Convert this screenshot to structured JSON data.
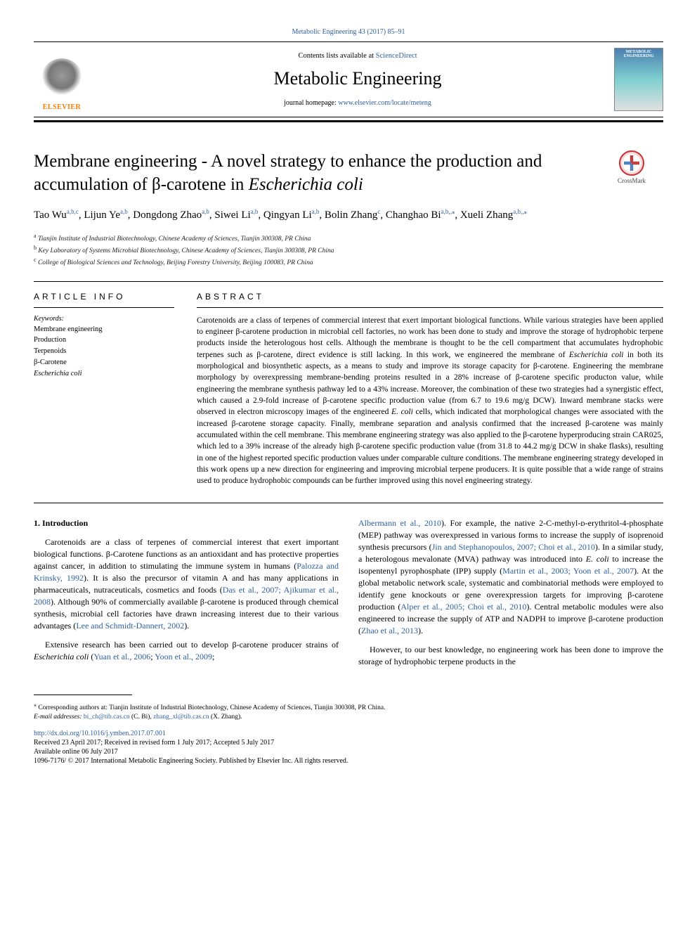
{
  "top_ref": "Metabolic Engineering 43 (2017) 85–91",
  "header": {
    "contents_prefix": "Contents lists available at ",
    "contents_link": "ScienceDirect",
    "journal_name": "Metabolic Engineering",
    "homepage_prefix": "journal homepage: ",
    "homepage_url": "www.elsevier.com/locate/meteng",
    "elsevier": "ELSEVIER",
    "cover_text": "METABOLIC ENGINEERING"
  },
  "crossmark_label": "CrossMark",
  "title_pre": "Membrane engineering - A novel strategy to enhance the production and accumulation of β-carotene in ",
  "title_em": "Escherichia coli",
  "authors_html": "Tao Wu|a,b,c|, Lijun Ye|a,b|, Dongdong Zhao|a,b|, Siwei Li|a,b|, Qingyan Li|a,b|, Bolin Zhang|c|, Changhao Bi|a,b,*|, Xueli Zhang|a,b,*|",
  "affiliations": [
    {
      "key": "a",
      "text": "Tianjin Institute of Industrial Biotechnology, Chinese Academy of Sciences, Tianjin 300308, PR China"
    },
    {
      "key": "b",
      "text": "Key Laboratory of Systems Microbial Biotechnology, Chinese Academy of Sciences, Tianjin 300308, PR China"
    },
    {
      "key": "c",
      "text": "College of Biological Sciences and Technology, Beijing Forestry University, Beijing 100083, PR China"
    }
  ],
  "article_info_heading": "ARTICLE INFO",
  "abstract_heading": "ABSTRACT",
  "keywords_label": "Keywords:",
  "keywords": [
    "Membrane engineering",
    "Production",
    "Terpenoids",
    "β-Carotene",
    "Escherichia coli"
  ],
  "abstract": "Carotenoids are a class of terpenes of commercial interest that exert important biological functions. While various strategies have been applied to engineer β-carotene production in microbial cell factories, no work has been done to study and improve the storage of hydrophobic terpene products inside the heterologous host cells. Although the membrane is thought to be the cell compartment that accumulates hydrophobic terpenes such as β-carotene, direct evidence is still lacking. In this work, we engineered the membrane of Escherichia coli in both its morphological and biosynthetic aspects, as a means to study and improve its storage capacity for β-carotene. Engineering the membrane morphology by overexpressing membrane-bending proteins resulted in a 28% increase of β-carotene specific producton value, while engineering the membrane synthesis pathway led to a 43% increase. Moreover, the combination of these two strategies had a synergistic effect, which caused a 2.9-fold increase of β-carotene specific production value (from 6.7 to 19.6 mg/g DCW). Inward membrane stacks were observed in electron microscopy images of the engineered E. coli cells, which indicated that morphological changes were associated with the increased β-carotene storage capacity. Finally, membrane separation and analysis confirmed that the increased β-carotene was mainly accumulated within the cell membrane. This membrane engineering strategy was also applied to the β-carotene hyperproducing strain CAR025, which led to a 39% increase of the already high β-carotene specific production value (from 31.8 to 44.2 mg/g DCW in shake flasks), resulting in one of the highest reported specific production values under comparable culture conditions. The membrane engineering strategy developed in this work opens up a new direction for engineering and improving microbial terpene producers. It is quite possible that a wide range of strains used to produce hydrophobic compounds can be further improved using this novel engineering strategy.",
  "intro_heading": "1. Introduction",
  "intro_p1_a": "Carotenoids are a class of terpenes of commercial interest that exert important biological functions. β-Carotene functions as an antioxidant and has protective properties against cancer, in addition to stimulating the immune system in humans (",
  "intro_p1_l1": "Palozza and Krinsky, 1992",
  "intro_p1_b": "). It is also the precursor of vitamin A and has many applications in pharmaceuticals, nutraceuticals, cosmetics and foods (",
  "intro_p1_l2": "Das et al., 2007; Ajikumar et al., 2008",
  "intro_p1_c": "). Although 90% of commercially available β-carotene is produced through chemical synthesis, microbial cell factories have drawn increasing interest due to their various advantages (",
  "intro_p1_l3": "Lee and Schmidt-Dannert, 2002",
  "intro_p1_d": ").",
  "intro_p2_a": "Extensive research has been carried out to develop β-carotene producer strains of ",
  "intro_p2_em": "Escherichia coli",
  "intro_p2_b": " (",
  "intro_p2_l1": "Yuan et al., 2006",
  "intro_p2_c": "; ",
  "intro_p2_l2": "Yoon et al., 2009",
  "intro_p2_d": ";",
  "col2_p1_l1": "Albermann et al., 2010",
  "col2_p1_a": "). For example, the native 2-C-methyl-ᴅ-erythritol-4-phosphate (MEP) pathway was overexpressed in various forms to increase the supply of isoprenoid synthesis precursors (",
  "col2_p1_l2": "Jin and Stephanopoulos, 2007; Choi et al., 2010",
  "col2_p1_b": "). In a similar study, a heterologous mevalonate (MVA) pathway was introduced into ",
  "col2_p1_em": "E. coli",
  "col2_p1_c": " to increase the isopentenyl pyrophosphate (IPP) supply (",
  "col2_p1_l3": "Martin et al., 2003; Yoon et al., 2007",
  "col2_p1_d": "). At the global metabolic network scale, systematic and combinatorial methods were employed to identify gene knockouts or gene overexpression targets for improving β-carotene production (",
  "col2_p1_l4": "Alper et al., 2005; Choi et al., 2010",
  "col2_p1_e": "). Central metabolic modules were also engineered to increase the supply of ATP and NADPH to improve β-carotene production (",
  "col2_p1_l5": "Zhao et al., 2013",
  "col2_p1_f": ").",
  "col2_p2": "However, to our best knowledge, no engineering work has been done to improve the storage of hydrophobic terpene products in the",
  "footer": {
    "corresponding_star": "⁎",
    "corresponding_text": "Corresponding authors at: Tianjin Institute of Industrial Biotechnology, Chinese Academy of Sciences, Tianjin 300308, PR China.",
    "email_label": "E-mail addresses: ",
    "email1": "bi_ch@tib.cas.cn",
    "email1_name": " (C. Bi), ",
    "email2": "zhang_xl@tib.cas.cn",
    "email2_name": " (X. Zhang).",
    "doi": "http://dx.doi.org/10.1016/j.ymben.2017.07.001",
    "received": "Received 23 April 2017; Received in revised form 1 July 2017; Accepted 5 July 2017",
    "available": "Available online 06 July 2017",
    "copyright": "1096-7176/ © 2017 International Metabolic Engineering Society. Published by Elsevier Inc. All rights reserved."
  }
}
